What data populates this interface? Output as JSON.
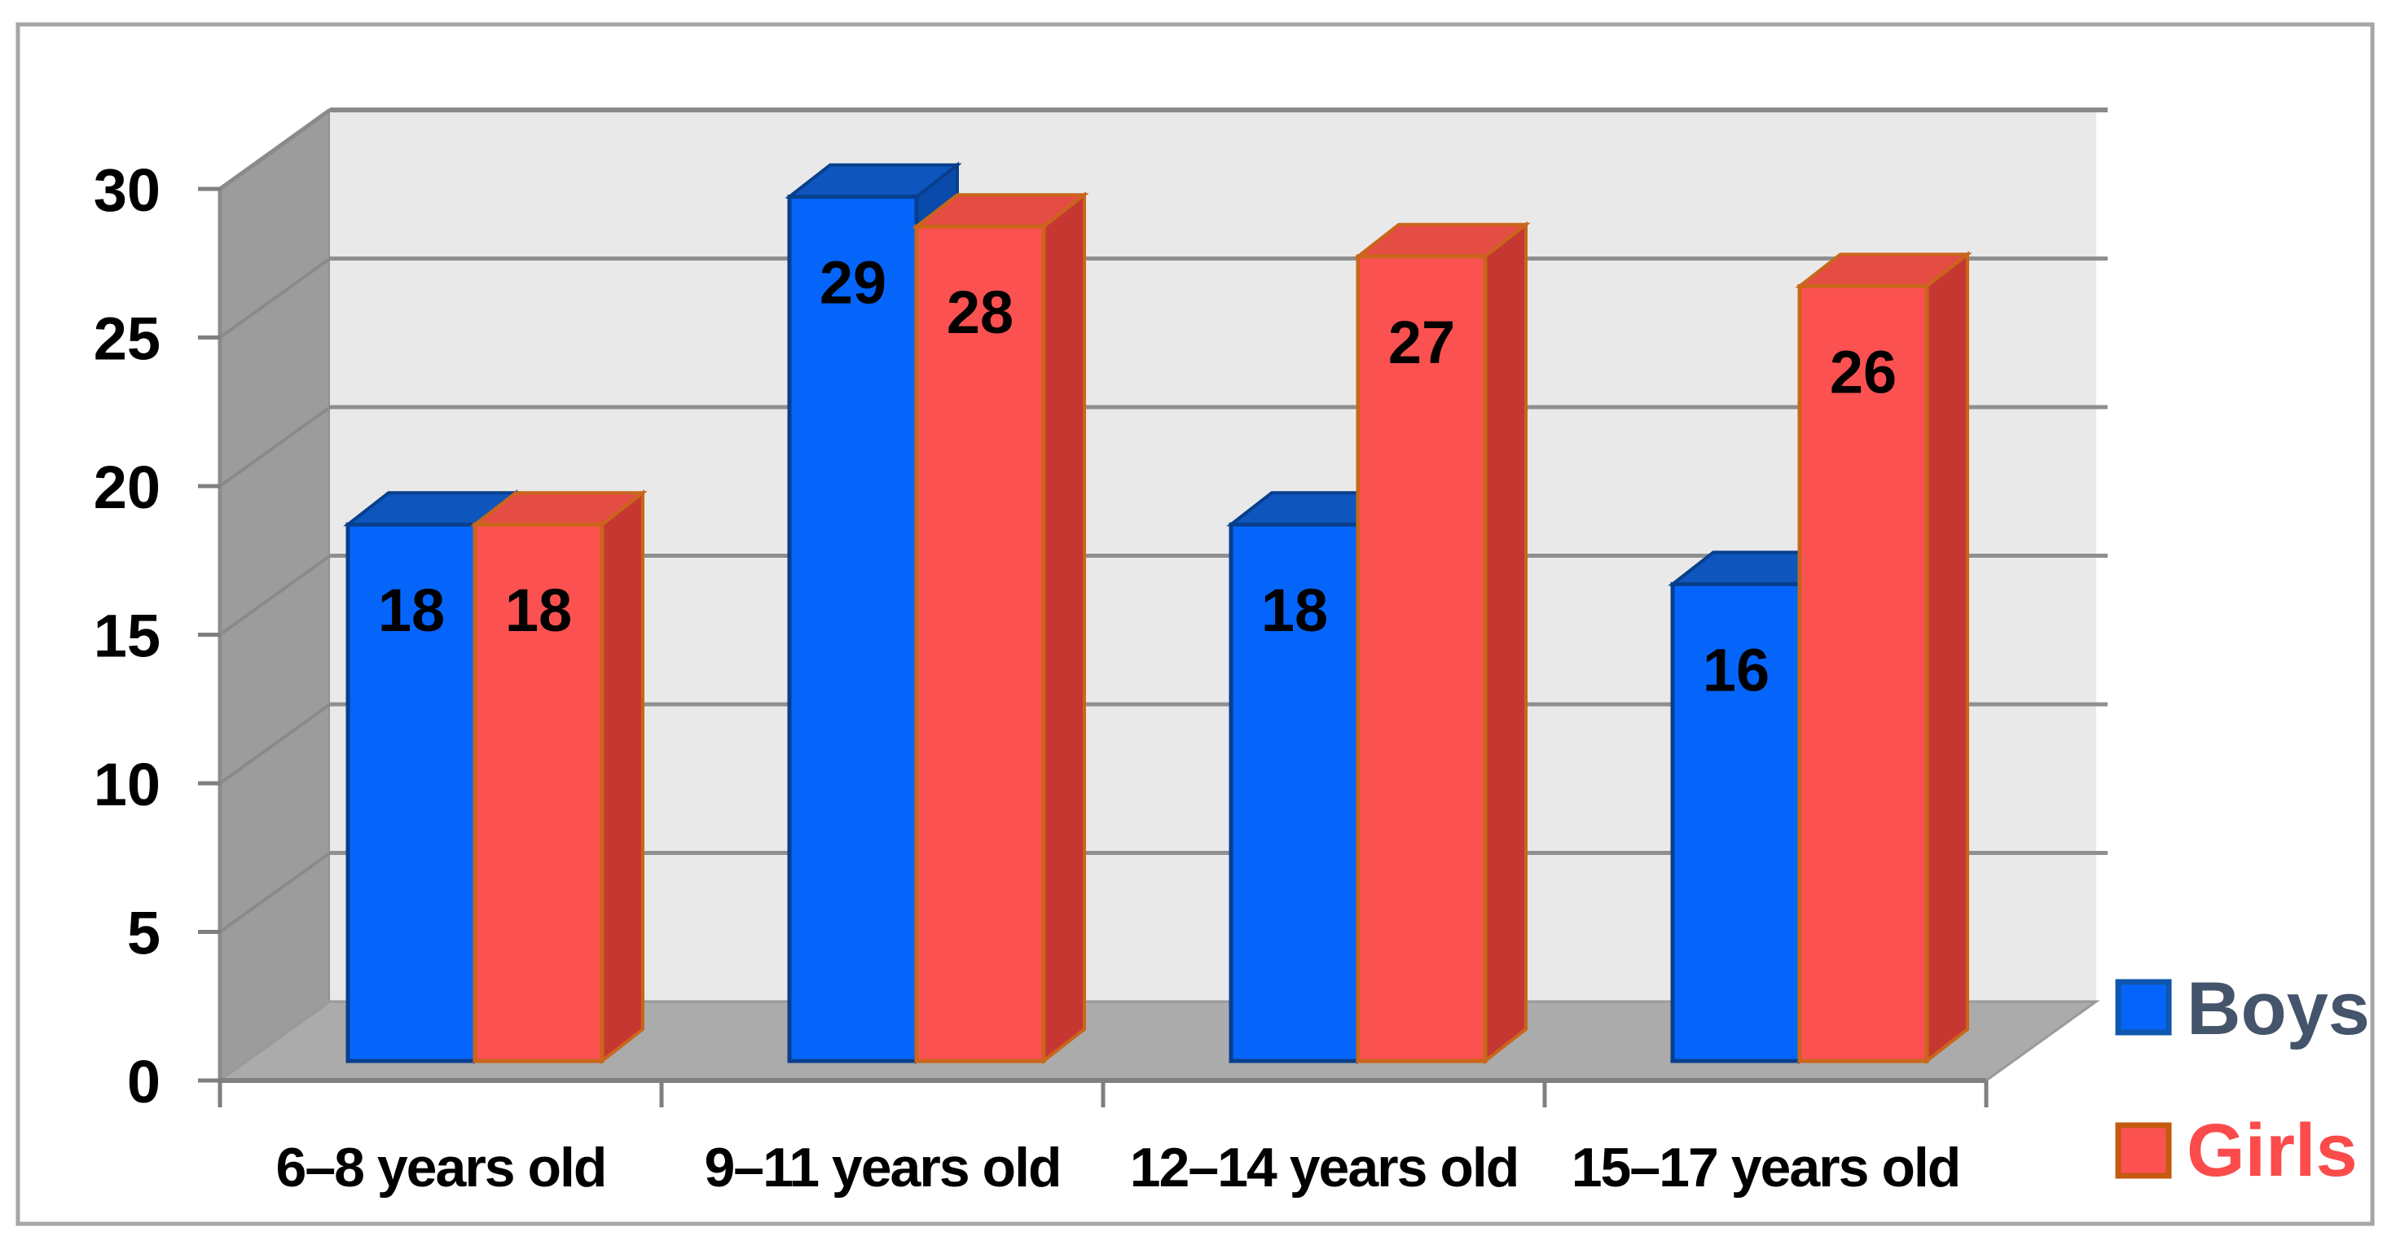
{
  "chart_data": {
    "type": "bar",
    "variant": "3d-clustered-column",
    "title": "",
    "xlabel": "",
    "ylabel": "",
    "categories": [
      "6–8 years old",
      "9–11 years old",
      "12–14 years old",
      "15–17 years old"
    ],
    "series": [
      {
        "name": "Boys",
        "values": [
          18,
          29,
          18,
          16
        ],
        "color": "#0565FA",
        "top_color": "#0E56BE",
        "side_color": "#0A4AAB",
        "border_color": "#083F8C"
      },
      {
        "name": "Girls",
        "values": [
          18,
          28,
          27,
          26
        ],
        "color": "#FB5151",
        "top_color": "#E54D44",
        "side_color": "#C63732",
        "border_color": "#C9661A"
      }
    ],
    "y_axis": {
      "min": 0,
      "max": 30,
      "step": 5,
      "ticks": [
        "0",
        "5",
        "10",
        "15",
        "20",
        "25",
        "30"
      ]
    },
    "grid": true,
    "data_labels_shown": true,
    "legend": {
      "position": "right-bottom",
      "entries": [
        {
          "label": "Boys",
          "swatch_fill": "#0565FA",
          "swatch_border": "#0E56AE",
          "text_color": "#44546A"
        },
        {
          "label": "Girls",
          "swatch_fill": "#FB5151",
          "swatch_border": "#C55A11",
          "text_color": "#FB4B4B"
        }
      ]
    }
  },
  "colors": {
    "background": "#FFFFFF",
    "outer_border": "#A6A6A6",
    "side_wall": "#9C9C9C",
    "back_wall": "#E9E9E9",
    "floor": "#ABABAB",
    "gridline": "#8F8F8F",
    "wall_gridline": "#8A8A8A",
    "axis_line": "#808080",
    "tick": "#7F7F7F",
    "tick_label": "#000000",
    "data_label": "#000000"
  }
}
